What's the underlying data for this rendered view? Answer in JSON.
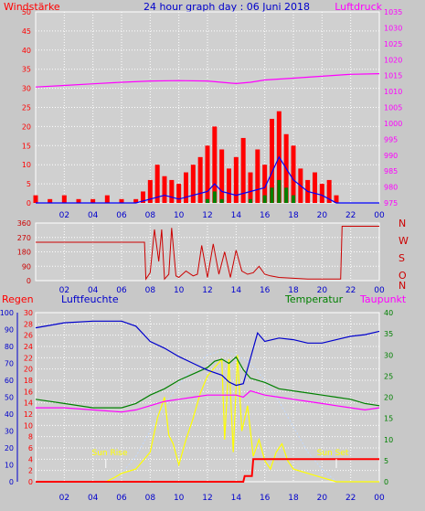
{
  "colors": {
    "background": "#c8c8c8",
    "plot_bg": "#d0d0d0",
    "grid": "#ffffff",
    "wind": "#ff0000",
    "gust_blue": "#0000ff",
    "gust_green": "#008000",
    "pressure": "#ff00ff",
    "direction": "#cc0000",
    "rain": "#ff0000",
    "humidity": "#0000cc",
    "temperature": "#008000",
    "dewpoint": "#ff00ff",
    "solar": "#ffff00",
    "solar_max": "#c0d8ff",
    "sun_text": "#ffff00"
  },
  "header": {
    "left_label": "Windstärke",
    "title": "24 hour graph day : 06 Juni 2018",
    "right_label": "Luftdruck"
  },
  "chart_data": [
    {
      "type": "area",
      "title": "24 hour graph day : 06 Juni 2018",
      "ylabel_left": "Windstärke",
      "ylabel_right": "Luftdruck",
      "ylim_left": [
        0,
        50
      ],
      "ylim_right": [
        975,
        1035
      ],
      "yticks_left": [
        "50",
        "45",
        "40",
        "35",
        "30",
        "25",
        "20",
        "15",
        "10",
        "5",
        "0"
      ],
      "yticks_right": [
        "1035",
        "1030",
        "1025",
        "1020",
        "1015",
        "1010",
        "1005",
        "1000",
        "995",
        "990",
        "985",
        "980",
        "975"
      ],
      "x_ticks": [
        "02",
        "04",
        "06",
        "08",
        "10",
        "12",
        "14",
        "16",
        "18",
        "20",
        "22",
        "00"
      ],
      "series": [
        {
          "name": "Luftdruck",
          "axis": "right",
          "x": [
            0,
            2,
            4,
            6,
            8,
            10,
            12,
            14,
            15,
            16,
            18,
            20,
            22,
            24
          ],
          "values": [
            1011.4,
            1011.9,
            1012.4,
            1012.9,
            1013.3,
            1013.4,
            1013.3,
            1012.5,
            1012.9,
            1013.6,
            1014.2,
            1014.8,
            1015.4,
            1015.6
          ]
        },
        {
          "name": "Windstärke",
          "axis": "left",
          "x": [
            0,
            1,
            2,
            3,
            4,
            5,
            6,
            7,
            7.5,
            8,
            8.5,
            9,
            9.5,
            10,
            10.5,
            11,
            11.5,
            12,
            12.5,
            13,
            13.5,
            14,
            14.5,
            15,
            15.5,
            16,
            16.5,
            17,
            17.5,
            18,
            18.5,
            19,
            19.5,
            20,
            20.5,
            21,
            22,
            23,
            24
          ],
          "values": [
            2,
            1,
            2,
            1,
            1,
            2,
            1,
            1,
            3,
            6,
            10,
            7,
            6,
            5,
            8,
            10,
            12,
            15,
            20,
            14,
            9,
            12,
            17,
            8,
            14,
            10,
            22,
            24,
            18,
            15,
            9,
            6,
            8,
            5,
            6,
            2,
            0,
            0,
            0
          ]
        },
        {
          "name": "Wind avg",
          "axis": "left",
          "x": [
            0,
            7,
            8,
            9,
            10,
            11,
            12,
            12.5,
            13,
            14,
            15,
            16,
            16.5,
            17,
            17.5,
            18,
            19,
            20,
            21,
            24
          ],
          "values": [
            0,
            0,
            1,
            2,
            1,
            2,
            3,
            5,
            3,
            2,
            3,
            4,
            8,
            12,
            9,
            6,
            3,
            2,
            0,
            0
          ]
        },
        {
          "name": "Wind min",
          "axis": "left",
          "x": [
            0,
            11,
            12,
            12.5,
            13,
            14,
            15,
            16,
            16.5,
            17,
            17.5,
            18,
            19,
            24
          ],
          "values": [
            0,
            0,
            1,
            3,
            1,
            0,
            1,
            2,
            4,
            6,
            4,
            2,
            0,
            0
          ]
        }
      ]
    },
    {
      "type": "line",
      "labels": [
        "N",
        "W",
        "S",
        "O",
        "N"
      ],
      "ylim": [
        0,
        360
      ],
      "yticks": [
        "360",
        "270",
        "180",
        "90",
        "0"
      ],
      "x_ticks": [
        "02",
        "04",
        "06",
        "08",
        "10",
        "12",
        "14",
        "16",
        "18",
        "20",
        "22",
        "00"
      ],
      "series": [
        {
          "name": "Windrichtung",
          "x": [
            0,
            7.6,
            7.7,
            8.0,
            8.3,
            8.6,
            8.8,
            9.0,
            9.3,
            9.5,
            9.8,
            10.0,
            10.5,
            11.0,
            11.3,
            11.6,
            12.0,
            12.4,
            12.8,
            13.2,
            13.6,
            14.0,
            14.4,
            14.8,
            15.2,
            15.6,
            16.0,
            16.4,
            17.0,
            18.0,
            19.0,
            20.0,
            21.0,
            21.3,
            21.4,
            24
          ],
          "values": [
            240,
            240,
            10,
            50,
            320,
            120,
            320,
            10,
            40,
            330,
            30,
            20,
            60,
            30,
            40,
            220,
            20,
            230,
            40,
            180,
            20,
            190,
            60,
            40,
            50,
            90,
            40,
            30,
            20,
            15,
            10,
            10,
            10,
            10,
            340,
            340
          ]
        }
      ]
    },
    {
      "type": "line",
      "label_rain": "Regen",
      "label_humidity": "Luftfeuchte",
      "label_temperature": "Temperatur",
      "label_dewpoint": "Taupunkt",
      "sun_rise": "Sun Rise",
      "sun_set": "Sun Set",
      "y_rain_ticks": [
        "30",
        "28",
        "26",
        "24",
        "22",
        "20",
        "18",
        "16",
        "14",
        "12",
        "10",
        "8",
        "6",
        "4",
        "2",
        "0"
      ],
      "y_humidity_ticks": [
        "100",
        "90",
        "80",
        "70",
        "60",
        "50",
        "40",
        "30",
        "20",
        "10",
        "0"
      ],
      "y_temp_ticks": [
        "40",
        "35",
        "30",
        "25",
        "20",
        "15",
        "10",
        "5",
        "0"
      ],
      "x_ticks": [
        "02",
        "04",
        "06",
        "08",
        "10",
        "12",
        "14",
        "16",
        "18",
        "20",
        "22",
        "00"
      ],
      "series": [
        {
          "name": "Luftfeuchte",
          "axis": "humidity",
          "x": [
            0,
            2,
            4,
            6,
            7,
            8,
            9,
            10,
            11,
            12,
            13,
            13.5,
            14,
            14.5,
            15,
            15.5,
            16,
            17,
            18,
            19,
            20,
            21,
            22,
            23,
            24
          ],
          "values": [
            91,
            94,
            95,
            95,
            92,
            83,
            79,
            74,
            70,
            66,
            63,
            59,
            57,
            58,
            73,
            88,
            83,
            85,
            84,
            82,
            82,
            84,
            86,
            87,
            89
          ]
        },
        {
          "name": "Temperatur",
          "axis": "temp",
          "x": [
            0,
            2,
            4,
            6,
            7,
            8,
            9,
            10,
            11,
            12,
            12.5,
            13,
            13.5,
            14,
            14.5,
            15,
            16,
            17,
            18,
            19,
            20,
            21,
            22,
            23,
            24
          ],
          "values": [
            19.5,
            18.5,
            17.5,
            17.5,
            18.5,
            20.5,
            22,
            24,
            25.5,
            27,
            28.5,
            29,
            28,
            29.5,
            26.5,
            24.5,
            23.5,
            22,
            21.5,
            21,
            20.5,
            20,
            19.5,
            18.5,
            18
          ]
        },
        {
          "name": "Taupunkt",
          "axis": "temp",
          "x": [
            0,
            2,
            4,
            6,
            7,
            8,
            9,
            10,
            11,
            12,
            13,
            14,
            14.5,
            15,
            16,
            17,
            18,
            19,
            20,
            21,
            22,
            23,
            24
          ],
          "values": [
            17.5,
            17.5,
            17,
            16.5,
            17,
            18,
            19,
            19.5,
            20,
            20.5,
            20.5,
            20.5,
            20,
            21.5,
            20.5,
            20,
            19.5,
            19,
            18.5,
            18,
            17.5,
            17,
            17.5
          ]
        },
        {
          "name": "Solar",
          "axis": "temp",
          "x": [
            0,
            4.9,
            5.5,
            6,
            7,
            7.5,
            8,
            8.5,
            9,
            9.3,
            9.6,
            10,
            10.5,
            11,
            11.5,
            12,
            12.5,
            13,
            13.2,
            13.5,
            13.8,
            14.1,
            14.4,
            14.8,
            15.2,
            15.6,
            16,
            16.4,
            16.8,
            17.2,
            17.6,
            18,
            19,
            20,
            20.5,
            21,
            24
          ],
          "values": [
            0,
            0,
            1,
            2,
            3,
            5,
            7,
            15,
            20,
            11,
            9,
            4,
            10,
            15,
            21,
            25,
            27,
            29,
            10,
            29,
            7,
            30,
            12,
            18,
            6,
            10,
            5,
            3,
            7,
            9,
            5,
            3,
            2,
            1,
            0.5,
            0,
            0
          ]
        },
        {
          "name": "Solar max",
          "axis": "temp",
          "x": [
            0,
            4.9,
            6,
            7,
            8,
            9,
            10,
            11,
            12,
            13,
            14,
            15,
            16,
            17,
            18,
            19,
            20,
            21,
            24
          ],
          "values": [
            0,
            0,
            2,
            6,
            12,
            18,
            23,
            27,
            30,
            31,
            30,
            28,
            24,
            19,
            13,
            7,
            3,
            0,
            0
          ]
        },
        {
          "name": "Regen",
          "axis": "rain",
          "x": [
            0,
            14.5,
            14.6,
            15.1,
            15.2,
            24
          ],
          "values": [
            0,
            0,
            1,
            1,
            4,
            4
          ]
        }
      ]
    }
  ]
}
